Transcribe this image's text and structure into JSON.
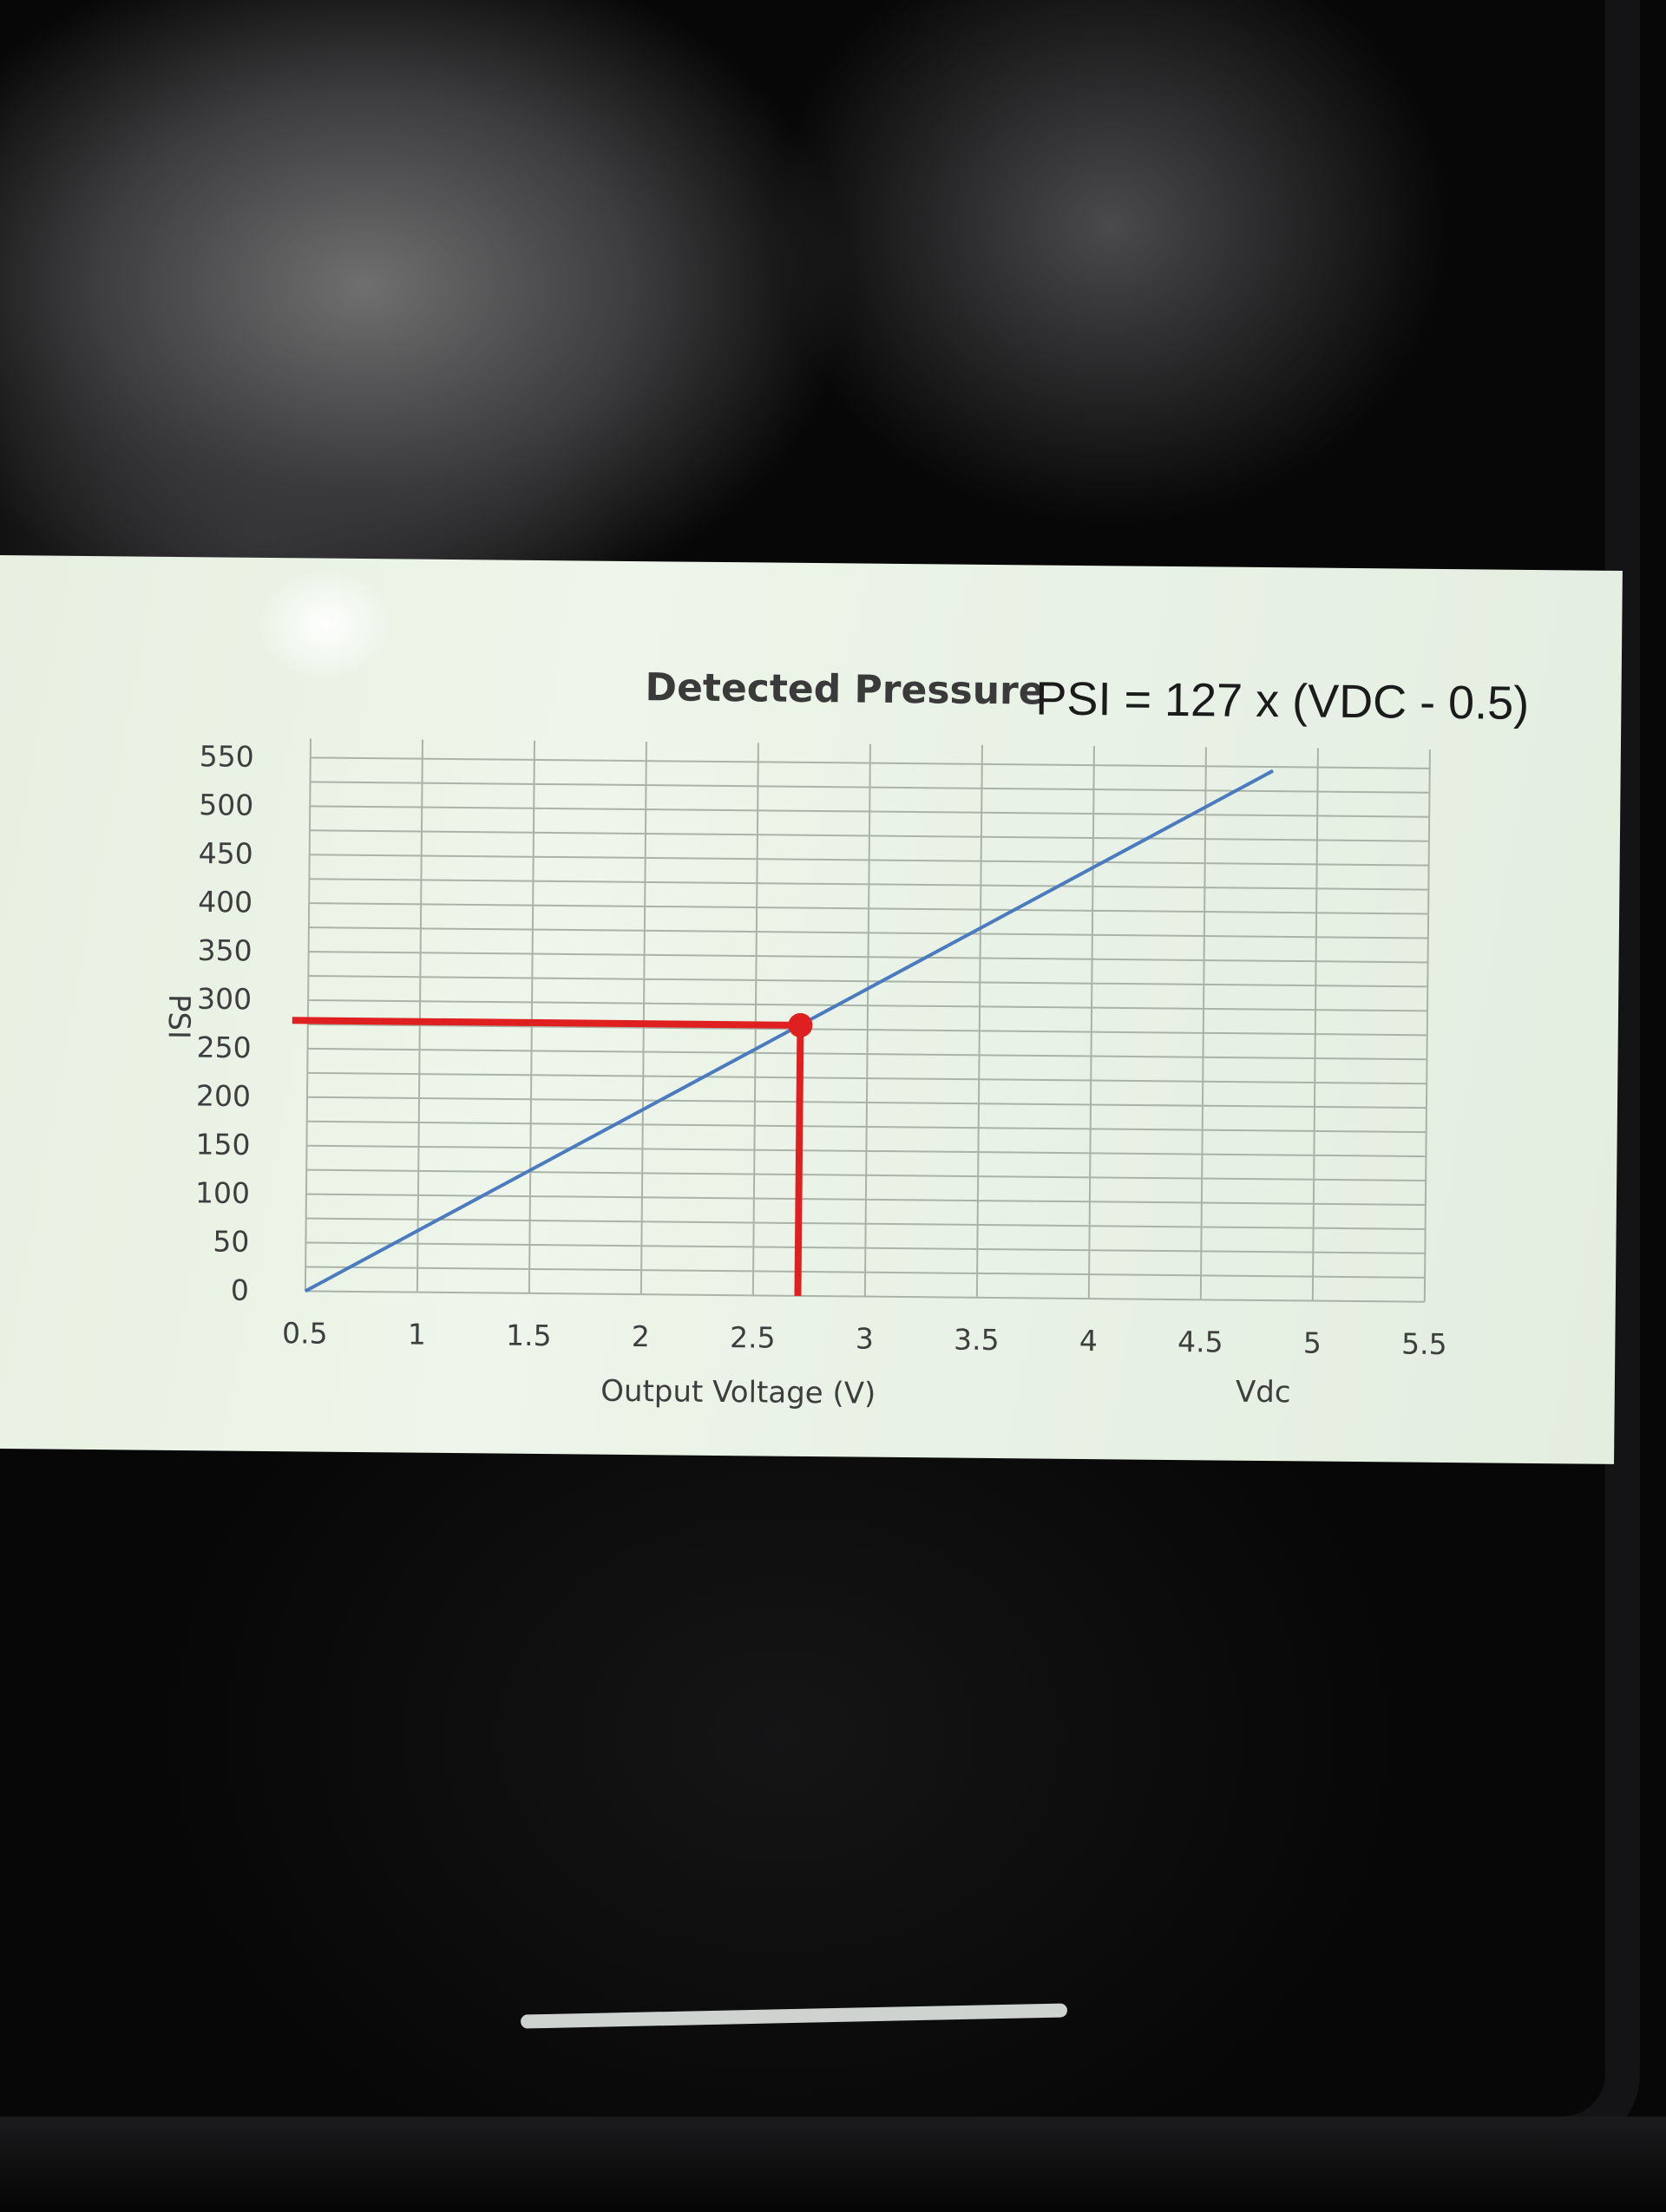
{
  "chart_data": {
    "type": "line",
    "title": "Detected Pressure",
    "subtitle": "PSI = 127 x (VDC - 0.5)",
    "xlabel": "Output Voltage (V)",
    "xlabel_secondary": "Vdc",
    "ylabel": "PSI",
    "x_ticks": [
      "0.5",
      "1",
      "1.5",
      "2",
      "2.5",
      "3",
      "3.5",
      "4",
      "4.5",
      "5",
      "5.5"
    ],
    "y_ticks": [
      "0",
      "50",
      "100",
      "150",
      "200",
      "250",
      "300",
      "350",
      "400",
      "450",
      "500",
      "550"
    ],
    "xlim": [
      0.5,
      5.5
    ],
    "ylim": [
      0,
      550
    ],
    "grid": true,
    "series": [
      {
        "x": [
          0.5,
          4.8
        ],
        "y": [
          0,
          546
        ],
        "color": "#4a7bbf"
      }
    ],
    "highlight": {
      "x": 2.7,
      "y": 279,
      "color": "#e02020"
    }
  }
}
